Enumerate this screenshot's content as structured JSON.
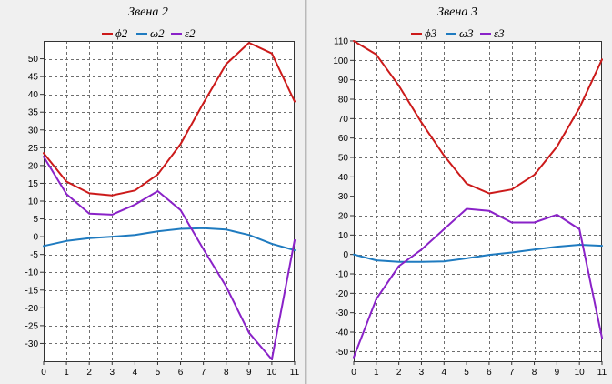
{
  "chart_data": [
    {
      "type": "line",
      "title": "Звена 2",
      "x": [
        0,
        1,
        2,
        3,
        4,
        5,
        6,
        7,
        8,
        9,
        10,
        11
      ],
      "xlim": [
        0,
        11
      ],
      "ylim": [
        -35,
        55
      ],
      "yticks": [
        50,
        45,
        40,
        35,
        30,
        25,
        20,
        15,
        10,
        5,
        0,
        -5,
        -10,
        -15,
        -20,
        -25,
        -30
      ],
      "grid": true,
      "legend_position": "top",
      "series": [
        {
          "name": "ϕ2",
          "color": "#cc1a1a",
          "values": [
            23.5,
            15.5,
            12.2,
            11.6,
            13.0,
            17.5,
            26.0,
            37.5,
            48.5,
            54.5,
            51.5,
            38.0
          ]
        },
        {
          "name": "ω2",
          "color": "#1f7bc0",
          "values": [
            -2.6,
            -1.2,
            -0.4,
            0.0,
            0.5,
            1.5,
            2.2,
            2.4,
            2.0,
            0.5,
            -2.0,
            -3.8
          ]
        },
        {
          "name": "ε2",
          "color": "#8a22c8",
          "values": [
            22.5,
            12.0,
            6.5,
            6.2,
            9.0,
            12.8,
            7.5,
            -3.5,
            -14.0,
            -27.0,
            -34.5,
            -1.0
          ]
        }
      ]
    },
    {
      "type": "line",
      "title": "Звена 3",
      "x": [
        0,
        1,
        2,
        3,
        4,
        5,
        6,
        7,
        8,
        9,
        10,
        11
      ],
      "xlim": [
        0,
        11
      ],
      "ylim": [
        -55,
        110
      ],
      "yticks": [
        110,
        100,
        90,
        80,
        70,
        60,
        50,
        40,
        30,
        20,
        10,
        0,
        -10,
        -20,
        -30,
        -40,
        -50
      ],
      "grid": true,
      "legend_position": "top",
      "series": [
        {
          "name": "ϕ3",
          "color": "#cc1a1a",
          "values": [
            110.0,
            103.0,
            87.0,
            68.0,
            51.0,
            36.5,
            31.5,
            33.5,
            41.0,
            55.5,
            75.5,
            100.5
          ]
        },
        {
          "name": "ω3",
          "color": "#1f7bc0",
          "values": [
            0.0,
            -3.0,
            -3.8,
            -3.8,
            -3.6,
            -2.0,
            -0.2,
            1.0,
            2.5,
            4.0,
            5.0,
            4.5
          ]
        },
        {
          "name": "ε3",
          "color": "#8a22c8",
          "values": [
            -53.0,
            -23.0,
            -6.0,
            2.5,
            13.0,
            23.5,
            22.5,
            16.5,
            16.5,
            20.5,
            13.0,
            -43.0
          ]
        }
      ]
    }
  ]
}
